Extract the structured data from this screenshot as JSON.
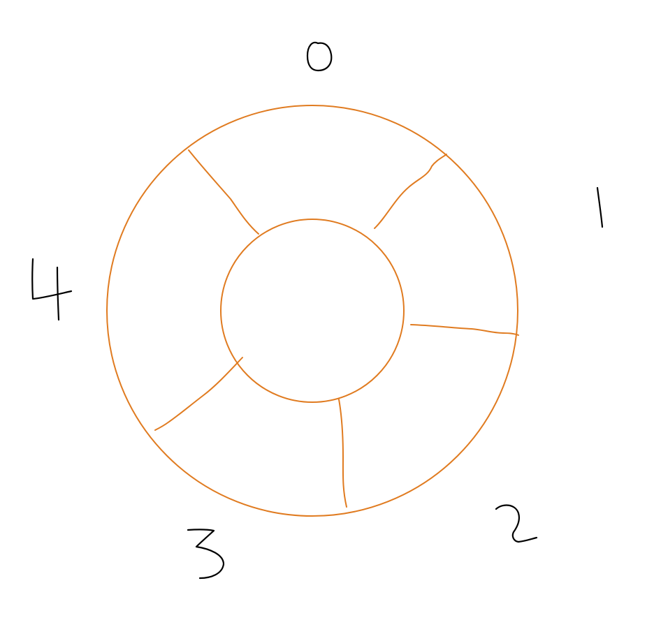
{
  "colors": {
    "background": "#ffffff",
    "ring": "#e07b20",
    "label": "#000000"
  },
  "diagram": {
    "shape": "annulus",
    "sector_count": 5,
    "sector_labels": [
      "0",
      "1",
      "2",
      "3",
      "4"
    ]
  }
}
